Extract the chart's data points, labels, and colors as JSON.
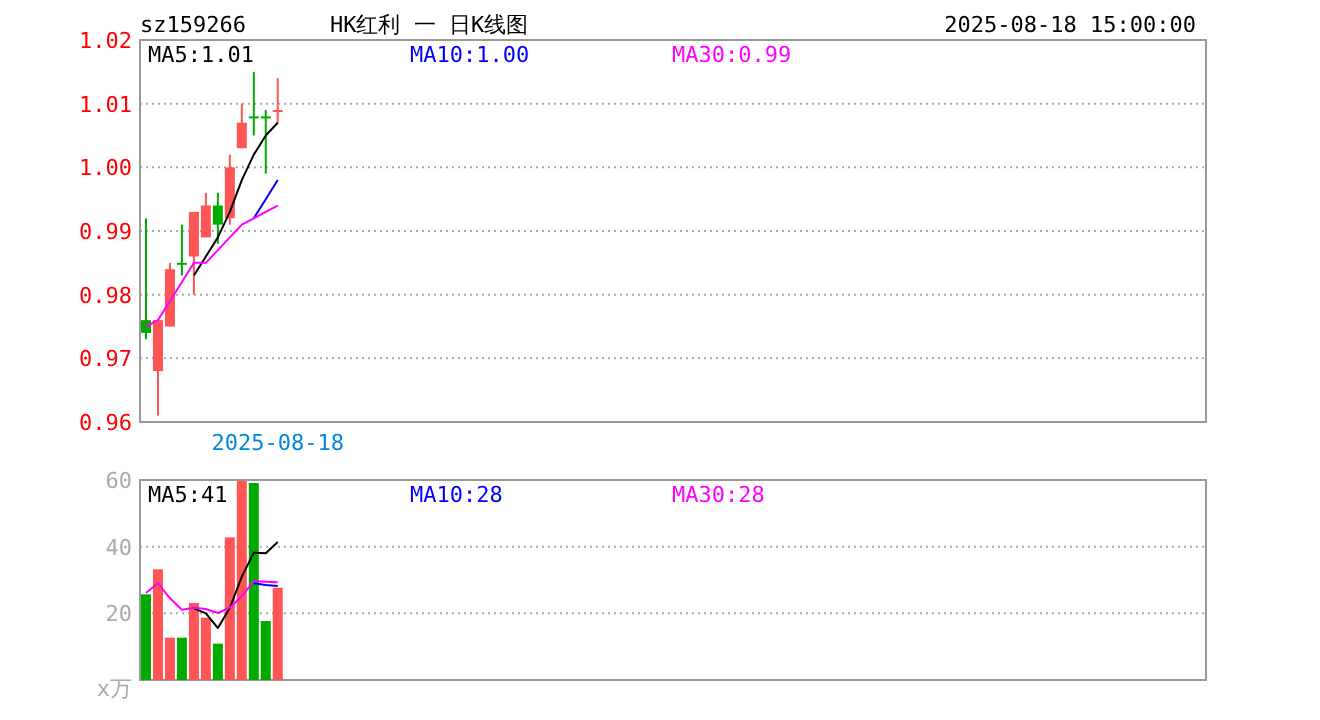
{
  "chart_data": [
    {
      "type": "candlestick",
      "title": "HK红利 一 日K线图",
      "subtitle": "sz159266",
      "annotations": [
        "2025-08-18 15:00:00"
      ],
      "categories": [
        null,
        null,
        null,
        null,
        null,
        null,
        null,
        null,
        null,
        null,
        null,
        "2025-08-18",
        null,
        null,
        null,
        null,
        null,
        null,
        null,
        null,
        null,
        null,
        null,
        null,
        null,
        null,
        null,
        null,
        null,
        null,
        null,
        null,
        null,
        null,
        null,
        null,
        null,
        null,
        null,
        null,
        null,
        null,
        null,
        null,
        null,
        null,
        null,
        null,
        null,
        null,
        null,
        null,
        null,
        null,
        null,
        null,
        null,
        null,
        null,
        null,
        null,
        null,
        null,
        null,
        null,
        null,
        null,
        null,
        null,
        null,
        null,
        null,
        null,
        null,
        null,
        null,
        null,
        null,
        null,
        null,
        null,
        null,
        null,
        null,
        null,
        null,
        null,
        null,
        null
      ],
      "ohlc": [
        [
          0.976,
          0.992,
          0.973,
          0.974
        ],
        [
          0.968,
          0.976,
          0.961,
          0.976
        ],
        [
          0.975,
          0.985,
          0.975,
          0.984
        ],
        [
          0.985,
          0.991,
          0.983,
          0.985
        ],
        [
          0.986,
          0.993,
          0.98,
          0.993
        ],
        [
          0.989,
          0.996,
          0.989,
          0.994
        ],
        [
          0.994,
          0.996,
          0.988,
          0.991
        ],
        [
          0.992,
          1.002,
          0.991,
          1.0
        ],
        [
          1.003,
          1.01,
          1.003,
          1.007
        ],
        [
          1.008,
          1.015,
          1.005,
          1.008
        ],
        [
          1.008,
          1.009,
          0.999,
          1.008
        ],
        [
          1.009,
          1.014,
          1.007,
          1.009
        ],
        null,
        null,
        null,
        null,
        null,
        null,
        null,
        null,
        null,
        null,
        null,
        null,
        null,
        null,
        null,
        null,
        null,
        null,
        null,
        null,
        null,
        null,
        null,
        null,
        null,
        null,
        null,
        null,
        null,
        null,
        null,
        null,
        null,
        null,
        null,
        null,
        null,
        null,
        null,
        null,
        null,
        null,
        null,
        null,
        null,
        null,
        null,
        null,
        null,
        null,
        null,
        null,
        null,
        null,
        null,
        null,
        null,
        null,
        null,
        null,
        null,
        null,
        null,
        null,
        null,
        null,
        null,
        null,
        null,
        null,
        null,
        null,
        null,
        null,
        null,
        null,
        null
      ],
      "colors": [
        "#00aa00",
        "#ff5555",
        "#ff5555",
        "#00aa00",
        "#ff5555",
        "#ff5555",
        "#00aa00",
        "#ff5555",
        "#ff5555",
        "#00aa00",
        "#00aa00",
        "#ff5555",
        null,
        null,
        null,
        null,
        null,
        null,
        null,
        null,
        null,
        null,
        null,
        null,
        null,
        null,
        null,
        null,
        null,
        null,
        null,
        null,
        null,
        null,
        null,
        null,
        null,
        null,
        null,
        null,
        null,
        null,
        null,
        null,
        null,
        null,
        null,
        null,
        null,
        null,
        null,
        null,
        null,
        null,
        null,
        null,
        null,
        null,
        null,
        null,
        null,
        null,
        null,
        null,
        null,
        null,
        null,
        null,
        null,
        null,
        null,
        null,
        null,
        null,
        null,
        null,
        null,
        null,
        null,
        null,
        null,
        null,
        null,
        null,
        null,
        null,
        null,
        null,
        null
      ],
      "series": [
        {
          "name": "MA5:1.01",
          "type": "line",
          "color": "#000000",
          "values": [
            null,
            null,
            null,
            null,
            0.983,
            0.986,
            0.989,
            0.993,
            0.998,
            1.002,
            1.005,
            1.007,
            null,
            null,
            null,
            null,
            null,
            null,
            null,
            null,
            null,
            null,
            null,
            null,
            null,
            null,
            null,
            null,
            null,
            null,
            null,
            null,
            null,
            null,
            null,
            null,
            null,
            null,
            null,
            null,
            null,
            null,
            null,
            null,
            null,
            null,
            null,
            null,
            null,
            null,
            null,
            null,
            null,
            null,
            null,
            null,
            null,
            null,
            null,
            null,
            null,
            null,
            null,
            null,
            null,
            null,
            null,
            null,
            null,
            null,
            null,
            null,
            null,
            null,
            null,
            null,
            null,
            null,
            null,
            null,
            null,
            null,
            null,
            null,
            null,
            null,
            null,
            null,
            null
          ]
        },
        {
          "name": "MA10:1.00",
          "type": "line",
          "color": "#0000ff",
          "values": [
            null,
            null,
            null,
            null,
            null,
            null,
            null,
            null,
            null,
            0.992,
            0.995,
            0.998,
            null,
            null,
            null,
            null,
            null,
            null,
            null,
            null,
            null,
            null,
            null,
            null,
            null,
            null,
            null,
            null,
            null,
            null,
            null,
            null,
            null,
            null,
            null,
            null,
            null,
            null,
            null,
            null,
            null,
            null,
            null,
            null,
            null,
            null,
            null,
            null,
            null,
            null,
            null,
            null,
            null,
            null,
            null,
            null,
            null,
            null,
            null,
            null,
            null,
            null,
            null,
            null,
            null,
            null,
            null,
            null,
            null,
            null,
            null,
            null,
            null,
            null,
            null,
            null,
            null,
            null,
            null,
            null,
            null,
            null,
            null,
            null,
            null,
            null,
            null,
            null,
            null
          ]
        },
        {
          "name": "MA30:0.99",
          "type": "line",
          "color": "#ff00ff",
          "values": [
            0.975,
            0.976,
            0.979,
            0.982,
            0.985,
            0.985,
            0.987,
            0.989,
            0.991,
            0.992,
            0.993,
            0.994,
            null,
            null,
            null,
            null,
            null,
            null,
            null,
            null,
            null,
            null,
            null,
            null,
            null,
            null,
            null,
            null,
            null,
            null,
            null,
            null,
            null,
            null,
            null,
            null,
            null,
            null,
            null,
            null,
            null,
            null,
            null,
            null,
            null,
            null,
            null,
            null,
            null,
            null,
            null,
            null,
            null,
            null,
            null,
            null,
            null,
            null,
            null,
            null,
            null,
            null,
            null,
            null,
            null,
            null,
            null,
            null,
            null,
            null,
            null,
            null,
            null,
            null,
            null,
            null,
            null,
            null,
            null,
            null,
            null,
            null,
            null,
            null,
            null,
            null,
            null,
            null,
            null
          ]
        }
      ],
      "ylim": [
        0.96,
        1.02
      ],
      "yticks": [
        {
          "value": 0.96,
          "label": "0.96"
        },
        {
          "value": 0.97,
          "label": "0.97"
        },
        {
          "value": 0.98,
          "label": "0.98"
        },
        {
          "value": 0.99,
          "label": "0.99"
        },
        {
          "value": 1.0,
          "label": "1.00"
        },
        {
          "value": 1.01,
          "label": "1.01"
        },
        {
          "value": 1.02,
          "label": "1.02"
        }
      ],
      "grid": "y",
      "legend": "top"
    },
    {
      "type": "bar",
      "ylabel": "x万",
      "categories": [
        null,
        null,
        null,
        null,
        null,
        null,
        null,
        null,
        null,
        null,
        null,
        null,
        null,
        null,
        null,
        null,
        null,
        null,
        null,
        null,
        null,
        null,
        null,
        null,
        null,
        null,
        null,
        null,
        null,
        null,
        null,
        null,
        null,
        null,
        null,
        null,
        null,
        null,
        null,
        null,
        null,
        null,
        null,
        null,
        null,
        null,
        null,
        null,
        null,
        null,
        null,
        null,
        null,
        null,
        null,
        null,
        null,
        null,
        null,
        null,
        null,
        null,
        null,
        null,
        null,
        null,
        null,
        null,
        null,
        null,
        null,
        null,
        null,
        null,
        null,
        null,
        null,
        null,
        null,
        null,
        null,
        null,
        null,
        null,
        null,
        null,
        null,
        null,
        null
      ],
      "series": [
        {
          "type": "bar",
          "values": [
            25.7,
            33.2,
            12.7,
            12.7,
            23.1,
            18.7,
            10.9,
            42.8,
            59.7,
            59.1,
            17.7,
            27.7,
            null,
            null,
            null,
            null,
            null,
            null,
            null,
            null,
            null,
            null,
            null,
            null,
            null,
            null,
            null,
            null,
            null,
            null,
            null,
            null,
            null,
            null,
            null,
            null,
            null,
            null,
            null,
            null,
            null,
            null,
            null,
            null,
            null,
            null,
            null,
            null,
            null,
            null,
            null,
            null,
            null,
            null,
            null,
            null,
            null,
            null,
            null,
            null,
            null,
            null,
            null,
            null,
            null,
            null,
            null,
            null,
            null,
            null,
            null,
            null,
            null,
            null,
            null,
            null,
            null,
            null,
            null,
            null,
            null,
            null,
            null,
            null,
            null,
            null,
            null,
            null,
            null
          ],
          "colors": [
            "#00aa00",
            "#ff5555",
            "#ff5555",
            "#00aa00",
            "#ff5555",
            "#ff5555",
            "#00aa00",
            "#ff5555",
            "#ff5555",
            "#00aa00",
            "#00aa00",
            "#ff5555",
            null,
            null,
            null,
            null,
            null,
            null,
            null,
            null,
            null,
            null,
            null,
            null,
            null,
            null,
            null,
            null,
            null,
            null,
            null,
            null,
            null,
            null,
            null,
            null,
            null,
            null,
            null,
            null,
            null,
            null,
            null,
            null,
            null,
            null,
            null,
            null,
            null,
            null,
            null,
            null,
            null,
            null,
            null,
            null,
            null,
            null,
            null,
            null,
            null,
            null,
            null,
            null,
            null,
            null,
            null,
            null,
            null,
            null,
            null,
            null,
            null,
            null,
            null,
            null,
            null,
            null,
            null,
            null,
            null,
            null,
            null,
            null,
            null,
            null,
            null,
            null,
            null
          ]
        },
        {
          "name": "MA5:41",
          "type": "line",
          "color": "#000000",
          "values": [
            null,
            null,
            null,
            null,
            21.5,
            20,
            15.6,
            21.6,
            31,
            38.2,
            38,
            41.4,
            null,
            null,
            null,
            null,
            null,
            null,
            null,
            null,
            null,
            null,
            null,
            null,
            null,
            null,
            null,
            null,
            null,
            null,
            null,
            null,
            null,
            null,
            null,
            null,
            null,
            null,
            null,
            null,
            null,
            null,
            null,
            null,
            null,
            null,
            null,
            null,
            null,
            null,
            null,
            null,
            null,
            null,
            null,
            null,
            null,
            null,
            null,
            null,
            null,
            null,
            null,
            null,
            null,
            null,
            null,
            null,
            null,
            null,
            null,
            null,
            null,
            null,
            null,
            null,
            null,
            null,
            null,
            null,
            null,
            null,
            null,
            null,
            null,
            null,
            null,
            null,
            null
          ]
        },
        {
          "name": "MA10:28",
          "type": "line",
          "color": "#0000ff",
          "values": [
            null,
            null,
            null,
            null,
            null,
            null,
            null,
            null,
            null,
            29,
            28.5,
            28.2,
            null,
            null,
            null,
            null,
            null,
            null,
            null,
            null,
            null,
            null,
            null,
            null,
            null,
            null,
            null,
            null,
            null,
            null,
            null,
            null,
            null,
            null,
            null,
            null,
            null,
            null,
            null,
            null,
            null,
            null,
            null,
            null,
            null,
            null,
            null,
            null,
            null,
            null,
            null,
            null,
            null,
            null,
            null,
            null,
            null,
            null,
            null,
            null,
            null,
            null,
            null,
            null,
            null,
            null,
            null,
            null,
            null,
            null,
            null,
            null,
            null,
            null,
            null,
            null,
            null,
            null,
            null,
            null,
            null,
            null,
            null,
            null,
            null,
            null,
            null,
            null,
            null
          ]
        },
        {
          "name": "MA30:28",
          "type": "line",
          "color": "#ff00ff",
          "values": [
            26.1,
            29.1,
            24.5,
            21.1,
            21.7,
            21.3,
            20.1,
            21.7,
            25.1,
            29.7,
            29.5,
            29.3,
            null,
            null,
            null,
            null,
            null,
            null,
            null,
            null,
            null,
            null,
            null,
            null,
            null,
            null,
            null,
            null,
            null,
            null,
            null,
            null,
            null,
            null,
            null,
            null,
            null,
            null,
            null,
            null,
            null,
            null,
            null,
            null,
            null,
            null,
            null,
            null,
            null,
            null,
            null,
            null,
            null,
            null,
            null,
            null,
            null,
            null,
            null,
            null,
            null,
            null,
            null,
            null,
            null,
            null,
            null,
            null,
            null,
            null,
            null,
            null,
            null,
            null,
            null,
            null,
            null,
            null,
            null,
            null,
            null,
            null,
            null,
            null,
            null,
            null,
            null,
            null,
            null
          ]
        }
      ],
      "ylim": [
        0,
        60
      ],
      "yticks": [
        20,
        40,
        60
      ],
      "grid": "y",
      "legend": "top",
      "tick_labels": "y"
    }
  ]
}
